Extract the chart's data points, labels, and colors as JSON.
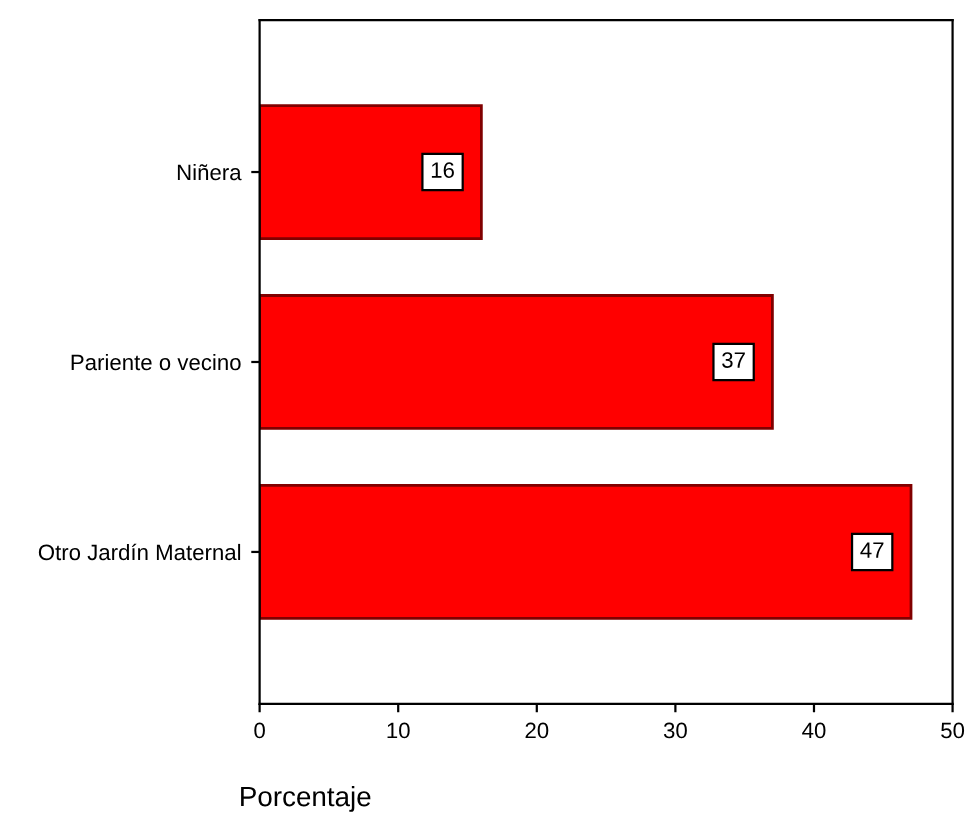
{
  "chart_data": {
    "type": "bar",
    "orientation": "horizontal",
    "categories": [
      "Niñera",
      "Pariente o vecino",
      "Otro Jardín Maternal"
    ],
    "values": [
      16,
      37,
      47
    ],
    "color": "#ff0000",
    "xlim": [
      0,
      50
    ],
    "xticks": [
      0,
      10,
      20,
      30,
      40,
      50
    ],
    "xlabel": "Porcentaje",
    "data_labels": true,
    "grid": false
  }
}
